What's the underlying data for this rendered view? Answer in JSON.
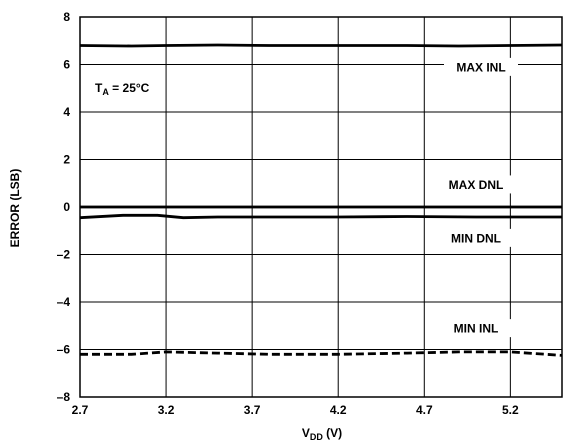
{
  "chart_data": {
    "type": "line",
    "title": "",
    "xlabel": {
      "base": "V",
      "sub": "DD",
      "suffix": " (V)"
    },
    "ylabel": "ERROR (LSB)",
    "xlim": [
      2.7,
      5.5
    ],
    "ylim": [
      -8,
      8
    ],
    "x_ticks": [
      2.7,
      3.2,
      3.7,
      4.2,
      4.7,
      5.2
    ],
    "x_tick_labels": [
      "2.7",
      "3.2",
      "3.7",
      "4.2",
      "4.7",
      "5.2"
    ],
    "y_ticks": [
      -8,
      -6,
      -4,
      -2,
      0,
      2,
      4,
      6,
      8
    ],
    "y_tick_labels": [
      "–8",
      "–6",
      "–4",
      "–2",
      "0",
      "2",
      "4",
      "6",
      "8"
    ],
    "x_grid": [
      3.2,
      3.7,
      4.2,
      4.7,
      5.2
    ],
    "y_grid": [
      -6,
      -4,
      -2,
      0,
      2,
      4,
      6
    ],
    "grid": true,
    "annotation": {
      "base": "T",
      "sub": "A",
      "suffix": " = 25°C"
    },
    "series": [
      {
        "name": "MAX INL",
        "style": "solid",
        "x": [
          2.7,
          3.0,
          3.2,
          3.5,
          3.8,
          4.2,
          4.6,
          4.9,
          5.2,
          5.5
        ],
        "values": [
          6.8,
          6.78,
          6.8,
          6.82,
          6.8,
          6.8,
          6.8,
          6.78,
          6.8,
          6.82
        ]
      },
      {
        "name": "MAX DNL",
        "style": "solid",
        "x": [
          2.7,
          3.2,
          3.7,
          4.2,
          4.7,
          5.2,
          5.5
        ],
        "values": [
          0,
          0,
          0,
          0,
          0,
          0,
          0
        ]
      },
      {
        "name": "MIN DNL",
        "style": "solid",
        "x": [
          2.7,
          2.95,
          3.15,
          3.3,
          3.5,
          3.8,
          4.2,
          4.6,
          5.0,
          5.5
        ],
        "values": [
          -0.45,
          -0.35,
          -0.35,
          -0.45,
          -0.42,
          -0.42,
          -0.42,
          -0.4,
          -0.42,
          -0.42
        ]
      },
      {
        "name": "MIN INL",
        "style": "dashed",
        "x": [
          2.7,
          3.0,
          3.2,
          3.5,
          3.8,
          4.2,
          4.6,
          4.9,
          5.2,
          5.5
        ],
        "values": [
          -6.2,
          -6.2,
          -6.1,
          -6.15,
          -6.2,
          -6.2,
          -6.15,
          -6.1,
          -6.1,
          -6.25
        ]
      }
    ]
  }
}
